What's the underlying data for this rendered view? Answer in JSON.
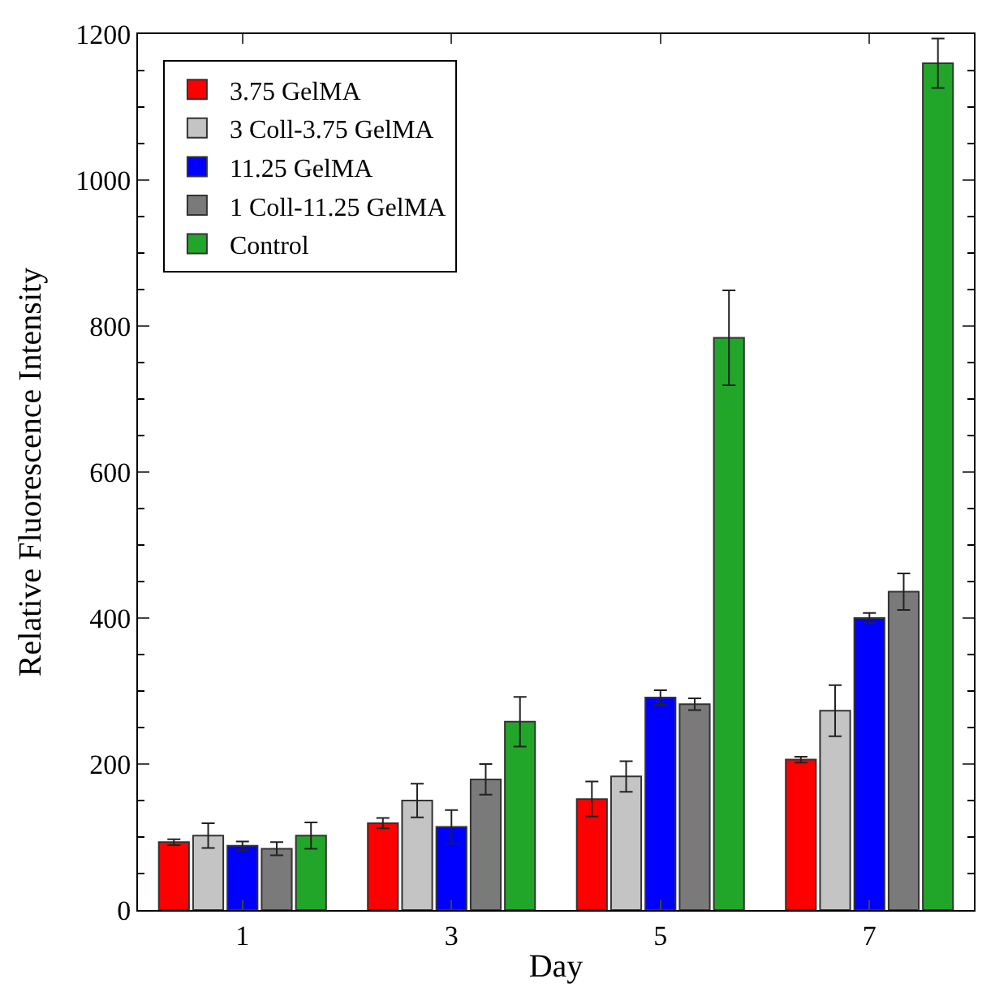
{
  "chart_data": {
    "type": "bar",
    "xlabel": "Day",
    "ylabel": "Relative Fluorescence Intensity",
    "categories": [
      "1",
      "3",
      "5",
      "7"
    ],
    "ylim": [
      0,
      1200
    ],
    "yticks": [
      0,
      200,
      400,
      600,
      800,
      1000,
      1200
    ],
    "legend": "top left",
    "series": [
      {
        "name": "3.75 GelMA",
        "color": "#ff0000",
        "values": [
          93,
          119,
          152,
          206
        ],
        "errors": [
          4,
          7,
          24,
          4
        ]
      },
      {
        "name": "3 Coll-3.75 GelMA",
        "color": "#c4c4c4",
        "values": [
          102,
          150,
          183,
          273
        ],
        "errors": [
          17,
          23,
          21,
          35
        ]
      },
      {
        "name": "11.25 GelMA",
        "color": "#0000ff",
        "values": [
          88,
          114,
          291,
          400
        ],
        "errors": [
          6,
          23,
          10,
          7
        ]
      },
      {
        "name": "1 Coll-11.25 GelMA",
        "color": "#7a7a7a",
        "values": [
          84,
          179,
          282,
          436
        ],
        "errors": [
          9,
          21,
          8,
          25
        ]
      },
      {
        "name": "Control",
        "color": "#22a62a",
        "values": [
          102,
          258,
          784,
          1160
        ],
        "errors": [
          18,
          34,
          65,
          34
        ]
      }
    ]
  }
}
